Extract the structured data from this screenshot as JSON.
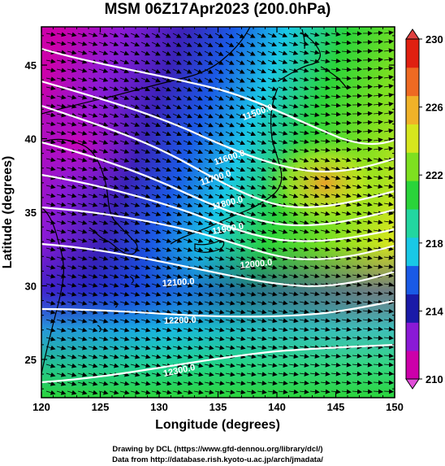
{
  "title": "MSM 06Z17Apr2023 (200.0hPa)",
  "xlabel": "Longitude (degrees)",
  "ylabel": "Latitude  (degrees)",
  "xticks": [
    "120",
    "125",
    "130",
    "135",
    "140",
    "145",
    "150"
  ],
  "yticks": [
    "25",
    "30",
    "35",
    "40",
    "45"
  ],
  "colorbar": {
    "ticks": [
      "210",
      "214",
      "218",
      "222",
      "226",
      "230"
    ],
    "min": 210,
    "max": 230,
    "colors": [
      "#cc00aa",
      "#8a1ad6",
      "#1a1aa8",
      "#1a5ae6",
      "#19c8e6",
      "#22d6a0",
      "#2ad43a",
      "#7ee020",
      "#d6e61e",
      "#f0b228",
      "#ee6a22",
      "#e02010"
    ]
  },
  "contour_labels": [
    "11500.0",
    "11600.0",
    "11700.0",
    "11800.0",
    "11900.0",
    "12000.0",
    "12100.0",
    "12200.0",
    "12300.0"
  ],
  "credit_line1": "Drawing by DCL (https://www.gfd-dennou.org/library/dcl/)",
  "credit_line2": "Data from http://database.rish.kyoto-u.ac.jp/arch/jmadata/",
  "chart_data": {
    "type": "heatmap",
    "title": "MSM 06Z17Apr2023 (200.0hPa)",
    "xlabel": "Longitude (degrees)",
    "ylabel": "Latitude  (degrees)",
    "xlim": [
      120,
      150
    ],
    "ylim": [
      22.4,
      47.6
    ],
    "color_range": [
      210,
      230
    ],
    "contour_levels": [
      11500,
      11600,
      11700,
      11800,
      11900,
      12000,
      12100,
      12200,
      12300
    ]
  }
}
